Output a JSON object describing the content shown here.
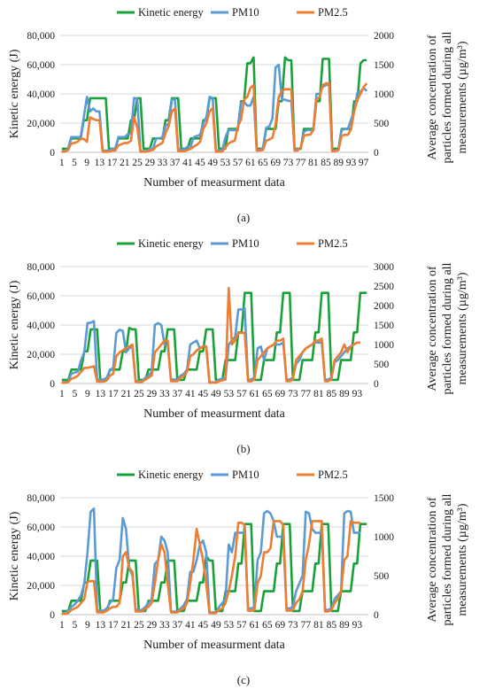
{
  "colors": {
    "kinetic": "#1aa038",
    "pm10": "#5b9bd5",
    "pm25": "#ed7d31"
  },
  "chart_data": [
    {
      "type": "line",
      "panel": "(a)",
      "xlabel": "Number of measurment data",
      "ylabel": "Kinetic energy (J)",
      "y2label_line1": "Average concentration of",
      "y2label_line2": "particles formed during all",
      "y2label_line3": "measurements (µg/m³)",
      "ylim": [
        0,
        80000
      ],
      "y2lim": [
        0,
        2000
      ],
      "yticks": [
        "0",
        "20,000",
        "40,000",
        "60,000",
        "80,000"
      ],
      "y2ticks": [
        "0",
        "500",
        "1000",
        "1500",
        "2000"
      ],
      "xticks": [
        "1",
        "5",
        "9",
        "13",
        "17",
        "21",
        "25",
        "29",
        "33",
        "37",
        "41",
        "45",
        "49",
        "53",
        "57",
        "61",
        "65",
        "69",
        "73",
        "77",
        "81",
        "85",
        "89",
        "93",
        "97"
      ],
      "legend": [
        "Kinetic energy",
        "PM10",
        "PM2.5"
      ],
      "n": 98,
      "series": [
        {
          "name": "Kinetic energy",
          "axis": "left",
          "values": [
            2500,
            2500,
            2500,
            9500,
            9500,
            9500,
            9500,
            22000,
            22000,
            37000,
            37000,
            37000,
            37000,
            37000,
            37000,
            2500,
            2500,
            2500,
            9500,
            9500,
            9500,
            9500,
            22000,
            22000,
            37000,
            37000,
            2500,
            2500,
            2500,
            9500,
            9500,
            9500,
            9500,
            22000,
            22000,
            37000,
            37000,
            37000,
            2500,
            2500,
            2500,
            9500,
            9500,
            9500,
            9500,
            22000,
            22000,
            37000,
            37000,
            37000,
            2500,
            2500,
            2500,
            16000,
            16000,
            16000,
            16000,
            35000,
            35000,
            61000,
            61000,
            65000,
            2500,
            2500,
            2500,
            16000,
            16000,
            16000,
            16000,
            35000,
            35000,
            65000,
            63000,
            63000,
            2500,
            2500,
            2500,
            16000,
            16000,
            16000,
            16000,
            35000,
            35000,
            64000,
            64000,
            64000,
            2500,
            2500,
            2500,
            16000,
            16000,
            16000,
            16000,
            35000,
            35000,
            61000,
            63000,
            63000
          ]
        },
        {
          "name": "PM10",
          "axis": "right",
          "values": [
            20,
            20,
            60,
            260,
            260,
            260,
            260,
            600,
            950,
            700,
            750,
            700,
            700,
            30,
            30,
            30,
            60,
            60,
            260,
            260,
            260,
            310,
            320,
            930,
            920,
            20,
            20,
            20,
            60,
            60,
            240,
            240,
            260,
            460,
            480,
            900,
            910,
            50,
            50,
            50,
            100,
            100,
            260,
            280,
            300,
            500,
            600,
            950,
            930,
            30,
            30,
            30,
            250,
            380,
            380,
            380,
            380,
            850,
            860,
            800,
            800,
            950,
            40,
            40,
            80,
            420,
            440,
            580,
            1450,
            1500,
            900,
            900,
            880,
            880,
            50,
            50,
            80,
            350,
            380,
            380,
            380,
            1000,
            1000,
            1120,
            1150,
            1160,
            30,
            30,
            50,
            380,
            400,
            400,
            560,
            700,
            1020,
            1040,
            1100,
            1050
          ]
        },
        {
          "name": "PM2.5",
          "axis": "right",
          "values": [
            10,
            10,
            40,
            150,
            160,
            180,
            230,
            230,
            180,
            600,
            570,
            550,
            550,
            10,
            10,
            10,
            30,
            30,
            120,
            140,
            160,
            160,
            200,
            600,
            430,
            10,
            10,
            10,
            30,
            40,
            100,
            130,
            160,
            330,
            450,
            700,
            750,
            20,
            20,
            20,
            40,
            60,
            100,
            130,
            180,
            400,
            500,
            700,
            760,
            10,
            10,
            10,
            80,
            150,
            180,
            200,
            440,
            560,
            900,
            950,
            1100,
            1150,
            30,
            30,
            40,
            200,
            220,
            250,
            480,
            950,
            1050,
            1080,
            1080,
            1080,
            30,
            30,
            80,
            280,
            300,
            300,
            380,
            900,
            950,
            1150,
            1180,
            1180,
            20,
            20,
            40,
            280,
            300,
            300,
            400,
            700,
            900,
            1000,
            1120,
            1180
          ]
        }
      ]
    },
    {
      "type": "line",
      "panel": "(b)",
      "xlabel": "Number of measurment data",
      "ylabel": "Kinetic energy (J)",
      "y2label_line1": "Average concentration of",
      "y2label_line2": "particles formed during all",
      "y2label_line3": "measurements (µg/m³)",
      "ylim": [
        0,
        80000
      ],
      "y2lim": [
        0,
        3000
      ],
      "yticks": [
        "0",
        "20,000",
        "40,000",
        "60,000",
        "80,000"
      ],
      "y2ticks": [
        "0",
        "500",
        "1000",
        "1500",
        "2000",
        "2500",
        "3000"
      ],
      "xticks": [
        "1",
        "5",
        "9",
        "13",
        "17",
        "21",
        "25",
        "29",
        "33",
        "37",
        "41",
        "45",
        "49",
        "53",
        "57",
        "61",
        "65",
        "69",
        "73",
        "77",
        "81",
        "85",
        "89",
        "93"
      ],
      "legend": [
        "Kinetic energy",
        "PM10",
        "PM2.5"
      ],
      "n": 96,
      "series": [
        {
          "name": "Kinetic energy",
          "axis": "left",
          "values": [
            2500,
            2500,
            2500,
            9500,
            9500,
            9500,
            9500,
            22000,
            22000,
            37000,
            37000,
            37000,
            2500,
            2500,
            2500,
            9500,
            9500,
            9500,
            9500,
            22000,
            22000,
            38000,
            37000,
            37000,
            2500,
            2500,
            2500,
            9500,
            9500,
            9500,
            9500,
            22000,
            22000,
            37000,
            37000,
            37000,
            2500,
            2500,
            2500,
            9500,
            9500,
            9500,
            9500,
            22000,
            22000,
            37000,
            37000,
            37000,
            2500,
            2500,
            2500,
            16000,
            16000,
            16000,
            16000,
            35000,
            35000,
            62000,
            62000,
            62000,
            2500,
            2500,
            2500,
            16000,
            16000,
            16000,
            16000,
            35000,
            35000,
            62000,
            62000,
            62000,
            2500,
            2500,
            2500,
            16000,
            16000,
            16000,
            16000,
            35000,
            35000,
            62000,
            62000,
            62000,
            2500,
            2500,
            2500,
            16000,
            16000,
            16000,
            16000,
            35000,
            35000,
            62000,
            62000,
            62000
          ]
        },
        {
          "name": "PM10",
          "axis": "right",
          "values": [
            30,
            30,
            60,
            250,
            280,
            300,
            600,
            800,
            1550,
            1560,
            1600,
            100,
            100,
            100,
            150,
            350,
            400,
            1300,
            1380,
            1350,
            800,
            900,
            950,
            60,
            60,
            60,
            150,
            200,
            300,
            1500,
            1550,
            1500,
            1000,
            1000,
            100,
            100,
            100,
            200,
            250,
            350,
            1000,
            1050,
            1100,
            900,
            950,
            950,
            30,
            30,
            30,
            100,
            130,
            150,
            1000,
            1100,
            1200,
            1900,
            1900,
            1920,
            100,
            100,
            150,
            900,
            950,
            600,
            900,
            950,
            1000,
            1000,
            1000,
            1050,
            100,
            100,
            150,
            500,
            600,
            800,
            900,
            950,
            1000,
            1050,
            1050,
            1050,
            100,
            100,
            150,
            550,
            600,
            700,
            800,
            900,
            950,
            1000,
            1050,
            1050
          ]
        },
        {
          "name": "PM2.5",
          "axis": "right",
          "values": [
            15,
            15,
            40,
            120,
            150,
            200,
            300,
            400,
            400,
            420,
            440,
            50,
            50,
            50,
            80,
            200,
            250,
            700,
            800,
            850,
            900,
            950,
            1000,
            40,
            40,
            40,
            100,
            150,
            200,
            800,
            900,
            1000,
            1100,
            1100,
            60,
            60,
            60,
            150,
            200,
            300,
            700,
            750,
            850,
            900,
            950,
            950,
            20,
            20,
            20,
            60,
            80,
            100,
            2450,
            1000,
            1100,
            1300,
            1300,
            1300,
            60,
            60,
            100,
            600,
            700,
            800,
            900,
            950,
            1000,
            1100,
            1100,
            1150,
            60,
            60,
            100,
            600,
            700,
            800,
            900,
            950,
            1000,
            1100,
            1100,
            1150,
            60,
            60,
            100,
            600,
            700,
            800,
            1000,
            800,
            950,
            1000,
            1050,
            1050
          ]
        }
      ]
    },
    {
      "type": "line",
      "panel": "(c)",
      "xlabel": "Number of measurment data",
      "ylabel": "Kinetic energy (J)",
      "y2label_line1": "Average concentration of",
      "y2label_line2": "particles formed during all",
      "y2label_line3": "measurements (µg/m³)",
      "ylim": [
        0,
        80000
      ],
      "y2lim": [
        0,
        1500
      ],
      "yticks": [
        "0",
        "20,000",
        "40,000",
        "60,000",
        "80,000"
      ],
      "y2ticks": [
        "0",
        "500",
        "1000",
        "1500"
      ],
      "xticks": [
        "1",
        "5",
        "9",
        "13",
        "17",
        "21",
        "25",
        "29",
        "33",
        "37",
        "41",
        "45",
        "49",
        "53",
        "57",
        "61",
        "65",
        "69",
        "73",
        "77",
        "81",
        "85",
        "89",
        "93"
      ],
      "legend": [
        "Kinetic energy",
        "PM10",
        "PM2.5"
      ],
      "n": 96,
      "series": [
        {
          "name": "Kinetic energy",
          "axis": "left",
          "values": [
            2500,
            2500,
            2500,
            9500,
            9500,
            9500,
            9500,
            22000,
            22000,
            37000,
            37000,
            37000,
            2500,
            2500,
            2500,
            9500,
            9500,
            9500,
            9500,
            22000,
            22000,
            37000,
            37000,
            37000,
            2500,
            2500,
            2500,
            9500,
            9500,
            9500,
            9500,
            22000,
            22000,
            37000,
            37000,
            37000,
            2500,
            2500,
            2500,
            9500,
            9500,
            9500,
            9500,
            22000,
            22000,
            40000,
            37000,
            37000,
            2500,
            2500,
            2500,
            16000,
            16000,
            16000,
            16000,
            35000,
            35000,
            62000,
            62000,
            62000,
            2500,
            2500,
            2500,
            16000,
            16000,
            16000,
            16000,
            35000,
            35000,
            62000,
            62000,
            62000,
            2500,
            2500,
            2500,
            16000,
            16000,
            16000,
            16000,
            35000,
            35000,
            62000,
            62000,
            62000,
            2500,
            2500,
            2500,
            16000,
            16000,
            16000,
            16000,
            35000,
            35000,
            62000,
            62000,
            62000
          ]
        },
        {
          "name": "PM10",
          "axis": "right",
          "values": [
            20,
            20,
            40,
            100,
            130,
            180,
            250,
            400,
            800,
            1320,
            1360,
            50,
            50,
            50,
            80,
            150,
            200,
            600,
            700,
            1240,
            1100,
            600,
            500,
            60,
            60,
            60,
            100,
            150,
            200,
            650,
            700,
            1000,
            950,
            800,
            40,
            40,
            40,
            80,
            120,
            200,
            550,
            550,
            700,
            900,
            950,
            800,
            30,
            30,
            30,
            100,
            150,
            200,
            900,
            800,
            1050,
            1050,
            1050,
            1050,
            80,
            80,
            100,
            700,
            800,
            1300,
            1330,
            1300,
            1200,
            1000,
            1000,
            1000,
            80,
            80,
            100,
            300,
            400,
            500,
            1320,
            1300,
            1100,
            1050,
            1050,
            1050,
            60,
            60,
            80,
            200,
            250,
            300,
            1300,
            1330,
            1320,
            1050,
            1050,
            1050
          ]
        },
        {
          "name": "PM2.5",
          "axis": "right",
          "values": [
            10,
            10,
            20,
            60,
            80,
            100,
            150,
            200,
            420,
            430,
            430,
            30,
            30,
            30,
            50,
            80,
            100,
            100,
            150,
            750,
            800,
            600,
            550,
            40,
            40,
            40,
            80,
            100,
            150,
            400,
            700,
            900,
            800,
            400,
            30,
            30,
            30,
            60,
            80,
            150,
            400,
            700,
            1100,
            900,
            700,
            400,
            20,
            20,
            20,
            60,
            80,
            150,
            300,
            500,
            750,
            1180,
            1180,
            1150,
            50,
            50,
            60,
            400,
            500,
            800,
            800,
            850,
            1200,
            1200,
            1200,
            1150,
            50,
            50,
            60,
            150,
            200,
            300,
            700,
            900,
            1200,
            1200,
            1200,
            1200,
            40,
            40,
            60,
            150,
            200,
            300,
            700,
            750,
            1200,
            1180,
            1180,
            1180
          ]
        }
      ]
    }
  ],
  "panels": [
    {
      "label": "(a)"
    },
    {
      "label": "(b)"
    },
    {
      "label": "(c)"
    }
  ]
}
